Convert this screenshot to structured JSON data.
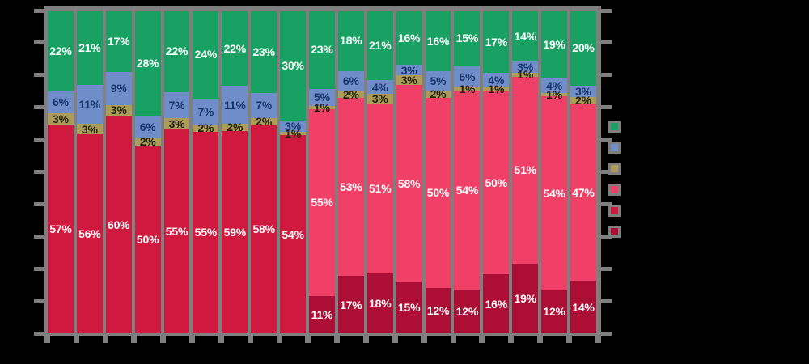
{
  "chart_data": {
    "type": "bar",
    "subtype": "stacked-100-percent",
    "orientation": "vertical",
    "title": "",
    "xlabel": "",
    "ylabel": "",
    "bar_count": 19,
    "categories": [
      "1",
      "2",
      "3",
      "4",
      "5",
      "6",
      "7",
      "8",
      "9",
      "10",
      "11",
      "12",
      "13",
      "14",
      "15",
      "16",
      "17",
      "18",
      "19"
    ],
    "category_labels_visible": false,
    "y_axis": {
      "min": 0,
      "max": 100,
      "tick_step": 10,
      "tick_labels_visible": false,
      "unit": "%"
    },
    "data_labels_visible": true,
    "label_suffix": "%",
    "series": [
      {
        "name": "green-top-series",
        "color": "#18a162",
        "label_color": "#ffffff",
        "values": [
          22,
          21,
          17,
          28,
          22,
          24,
          22,
          23,
          30,
          23,
          18,
          21,
          16,
          16,
          15,
          17,
          14,
          19,
          20
        ]
      },
      {
        "name": "blue-series",
        "color": "#6f8ec9",
        "label_color": "#17366b",
        "values": [
          6,
          11,
          9,
          6,
          7,
          7,
          11,
          7,
          3,
          5,
          6,
          4,
          3,
          5,
          6,
          4,
          3,
          4,
          3
        ]
      },
      {
        "name": "olive-series",
        "color": "#ac9c58",
        "label_color": "#23220e",
        "values": [
          3,
          3,
          3,
          2,
          3,
          2,
          2,
          2,
          1,
          1,
          2,
          3,
          3,
          2,
          1,
          1,
          1,
          1,
          2
        ]
      },
      {
        "name": "pink-series",
        "color": "#f14067",
        "label_color": "#ffffff",
        "values": [
          0,
          0,
          0,
          0,
          0,
          0,
          0,
          0,
          0,
          55,
          53,
          51,
          58,
          50,
          54,
          50,
          51,
          54,
          47
        ]
      },
      {
        "name": "crimson-series",
        "color": "#d0193e",
        "label_color": "#ffffff",
        "values": [
          57,
          56,
          60,
          50,
          55,
          55,
          59,
          58,
          54,
          0,
          0,
          0,
          0,
          0,
          0,
          0,
          0,
          0,
          0
        ]
      },
      {
        "name": "maroon-bottom-series",
        "color": "#ad0e35",
        "label_color": "#ffffff",
        "values": [
          0,
          0,
          0,
          0,
          0,
          0,
          0,
          0,
          0,
          11,
          17,
          18,
          15,
          12,
          12,
          16,
          19,
          12,
          14
        ]
      }
    ],
    "legend": {
      "position": "right",
      "labels_visible": false,
      "swatch_colors": [
        "#18a162",
        "#6f8ec9",
        "#ac9c58",
        "#f14067",
        "#d0193e",
        "#ad0e35"
      ]
    },
    "colors": {
      "background": "#000000",
      "plot_panel": "#7f7f7f",
      "ticks": "#7f7f7f"
    }
  }
}
